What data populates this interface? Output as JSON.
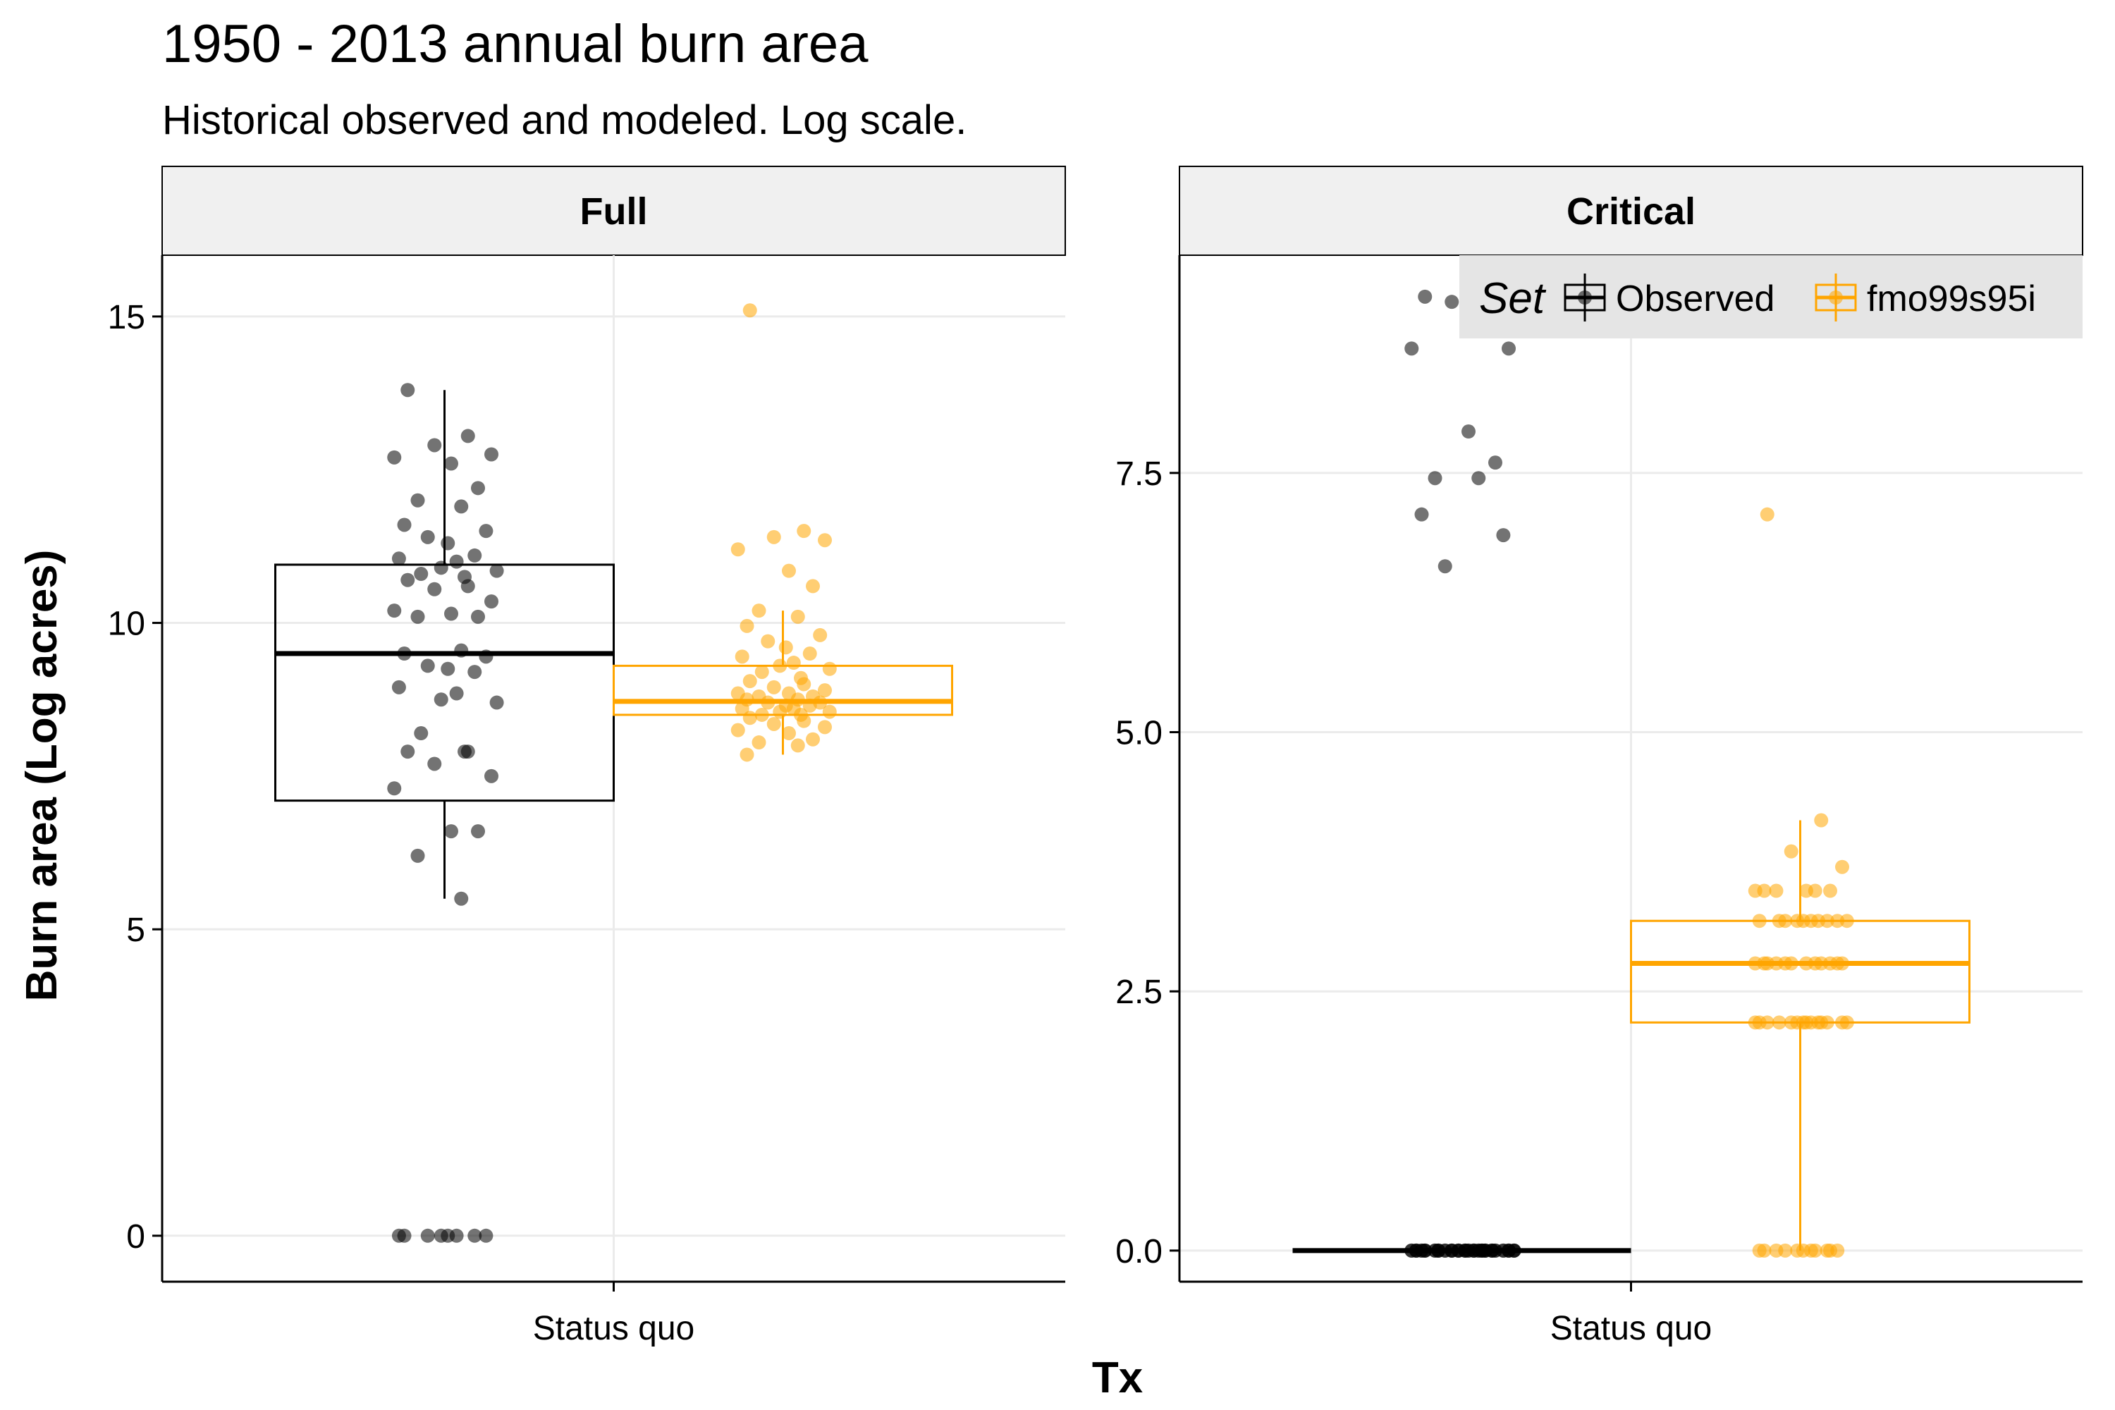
{
  "title": "1950 - 2013 annual burn area",
  "subtitle": "Historical observed and modeled. Log scale.",
  "colors": {
    "Observed": "#000000",
    "fmo99s95i": "#FFA500",
    "strip_bg": "#F0F0F0",
    "grid": "#EBEBEB",
    "legend_bg": "#E5E5E5"
  },
  "legend": {
    "title": "Set",
    "placement": "top-right (inside Critical panel)",
    "entries": [
      "Observed",
      "fmo99s95i"
    ]
  },
  "chart_data": [
    {
      "type": "box-jitter",
      "panel": "Full",
      "xlabel": "Tx",
      "ylabel": "Burn area (Log acres)",
      "categories": [
        "Status quo"
      ],
      "ylim": [
        -0.75,
        16.0
      ],
      "yticks": [
        0,
        5,
        10,
        15
      ],
      "ytick_labels": [
        "0",
        "5",
        "10",
        "15"
      ],
      "grid": true,
      "series": [
        {
          "name": "Observed",
          "box": {
            "min": 5.5,
            "q1": 7.1,
            "median": 9.5,
            "q3": 10.95,
            "max": 13.8
          },
          "points": [
            13.8,
            13.05,
            12.9,
            12.75,
            12.7,
            12.6,
            12.2,
            12.0,
            11.9,
            11.6,
            11.5,
            11.4,
            11.3,
            11.1,
            11.05,
            11.0,
            10.9,
            10.85,
            10.8,
            10.75,
            10.7,
            10.6,
            10.55,
            10.35,
            10.2,
            10.15,
            10.1,
            10.1,
            9.55,
            9.5,
            9.45,
            9.3,
            9.25,
            9.2,
            8.95,
            8.85,
            8.75,
            8.7,
            8.2,
            7.9,
            7.9,
            7.9,
            7.7,
            7.5,
            7.3,
            6.6,
            6.6,
            6.2,
            5.5,
            0,
            0,
            0,
            0,
            0,
            0,
            0,
            0
          ]
        },
        {
          "name": "fmo99s95i",
          "box": {
            "min": 7.85,
            "q1": 8.5,
            "median": 8.72,
            "q3": 9.3,
            "max": 10.2
          },
          "points": [
            15.1,
            11.5,
            11.4,
            11.35,
            11.2,
            10.85,
            10.6,
            10.2,
            10.1,
            9.95,
            9.8,
            9.7,
            9.6,
            9.5,
            9.45,
            9.35,
            9.3,
            9.25,
            9.2,
            9.1,
            9.05,
            9.0,
            8.95,
            8.9,
            8.85,
            8.85,
            8.8,
            8.8,
            8.75,
            8.75,
            8.7,
            8.7,
            8.65,
            8.65,
            8.6,
            8.6,
            8.55,
            8.55,
            8.5,
            8.5,
            8.45,
            8.4,
            8.35,
            8.3,
            8.25,
            8.2,
            8.1,
            8.05,
            8.0,
            7.85
          ]
        }
      ]
    },
    {
      "type": "box-jitter",
      "panel": "Critical",
      "xlabel": "Tx",
      "ylabel": "Burn area (Log acres)",
      "categories": [
        "Status quo"
      ],
      "ylim": [
        -0.3,
        9.6
      ],
      "yticks": [
        0,
        2.5,
        5,
        7.5
      ],
      "ytick_labels": [
        "0.0",
        "2.5",
        "5.0",
        "7.5"
      ],
      "grid": true,
      "series": [
        {
          "name": "Observed",
          "box": {
            "min": 0,
            "q1": 0,
            "median": 0,
            "q3": 0,
            "max": 0
          },
          "points": [
            9.2,
            9.2,
            9.15,
            8.7,
            8.7,
            7.9,
            7.6,
            7.45,
            7.45,
            7.1,
            6.9,
            6.6,
            0,
            0,
            0,
            0,
            0,
            0,
            0,
            0,
            0,
            0,
            0,
            0,
            0,
            0,
            0,
            0,
            0,
            0,
            0,
            0,
            0,
            0,
            0,
            0,
            0,
            0,
            0,
            0,
            0,
            0,
            0,
            0,
            0,
            0,
            0,
            0,
            0,
            0,
            0,
            0,
            0,
            0,
            0,
            0,
            0,
            0,
            0,
            0,
            0,
            0,
            0,
            0
          ]
        },
        {
          "name": "fmo99s95i",
          "box": {
            "min": 0,
            "q1": 2.2,
            "median": 2.77,
            "q3": 3.18,
            "max": 4.15
          },
          "points": [
            7.1,
            4.15,
            3.85,
            3.7,
            3.47,
            3.47,
            3.47,
            3.47,
            3.47,
            3.47,
            3.18,
            3.18,
            3.18,
            3.18,
            3.18,
            3.18,
            3.18,
            3.18,
            3.18,
            3.18,
            2.77,
            2.77,
            2.77,
            2.77,
            2.77,
            2.77,
            2.77,
            2.77,
            2.77,
            2.77,
            2.77,
            2.77,
            2.2,
            2.2,
            2.2,
            2.2,
            2.2,
            2.2,
            2.2,
            2.2,
            2.2,
            2.2,
            2.2,
            2.2,
            2.2,
            2.2,
            0,
            0,
            0,
            0,
            0,
            0,
            0,
            0,
            0,
            0,
            0
          ]
        }
      ]
    }
  ]
}
